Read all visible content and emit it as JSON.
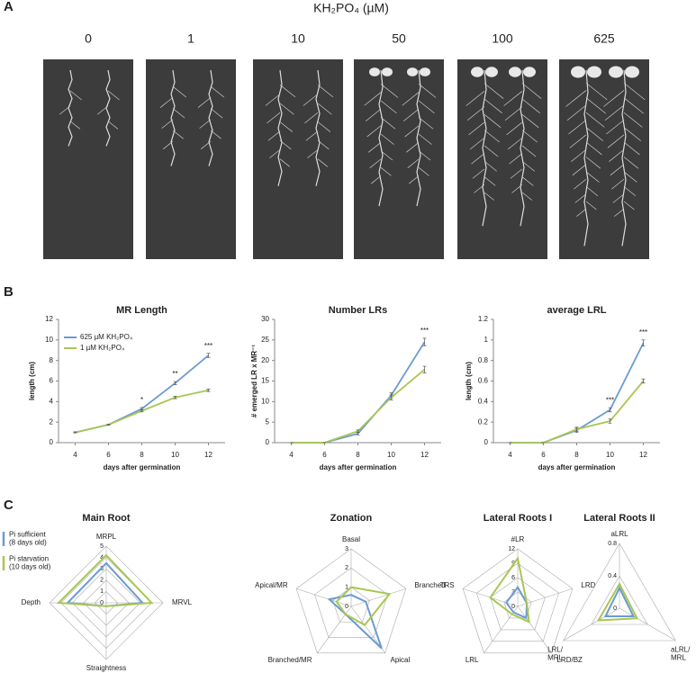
{
  "panel_a": {
    "label": "A",
    "title": "KH₂PO₄ (µM)",
    "concentrations": [
      "0",
      "1",
      "10",
      "50",
      "100",
      "625"
    ]
  },
  "panel_b_label": "B",
  "panel_c_label": "C",
  "legend_c": [
    "Pi sufficient (8 days old)",
    "Pi starvation (10 days old)"
  ],
  "chart_data": [
    {
      "type": "line",
      "title": "MR Length",
      "x_label": "days after germination",
      "y_label": "length (cm)",
      "x": [
        4,
        6,
        8,
        10,
        12
      ],
      "xlim": [
        3,
        13
      ],
      "xticks": [
        4,
        6,
        8,
        10,
        12
      ],
      "ylim": [
        0,
        12
      ],
      "yticks": [
        0,
        2,
        4,
        6,
        8,
        10,
        12
      ],
      "series": [
        {
          "name": "625 µM KH₂PO₄",
          "color": "#6b9bd2",
          "values": [
            1.0,
            1.75,
            3.3,
            5.8,
            8.5
          ],
          "errors": [
            0.05,
            0.05,
            0.12,
            0.15,
            0.2
          ]
        },
        {
          "name": "1 µM KH₂PO₄",
          "color": "#a9c653",
          "values": [
            1.0,
            1.75,
            3.1,
            4.4,
            5.1
          ],
          "errors": [
            0.05,
            0.05,
            0.1,
            0.12,
            0.12
          ]
        }
      ],
      "annotations": [
        {
          "x": 8,
          "text": "*"
        },
        {
          "x": 10,
          "text": "**"
        },
        {
          "x": 12,
          "text": "***"
        }
      ]
    },
    {
      "type": "line",
      "title": "Number LRs",
      "x_label": "days after germination",
      "y_label": "# emerged LR x MR⁻¹",
      "x": [
        4,
        6,
        8,
        10,
        12
      ],
      "xlim": [
        3,
        13
      ],
      "xticks": [
        4,
        6,
        8,
        10,
        12
      ],
      "ylim": [
        0,
        30
      ],
      "yticks": [
        0,
        5,
        10,
        15,
        20,
        25,
        30
      ],
      "series": [
        {
          "color": "#6b9bd2",
          "values": [
            0,
            0,
            2.2,
            11.5,
            24.5
          ],
          "errors": [
            0,
            0,
            0.3,
            0.6,
            0.9
          ]
        },
        {
          "color": "#a9c653",
          "values": [
            0,
            0,
            2.8,
            11,
            17.8
          ],
          "errors": [
            0,
            0,
            0.3,
            0.6,
            0.8
          ]
        }
      ],
      "annotations": [
        {
          "x": 12,
          "text": "***"
        }
      ]
    },
    {
      "type": "line",
      "title": "average LRL",
      "x_label": "days after germination",
      "y_label": "length (cm)",
      "x": [
        4,
        6,
        8,
        10,
        12
      ],
      "xlim": [
        3,
        13
      ],
      "xticks": [
        4,
        6,
        8,
        10,
        12
      ],
      "ylim": [
        0,
        1.2
      ],
      "yticks": [
        0,
        0.2,
        0.4,
        0.6,
        0.8,
        1,
        1.2
      ],
      "series": [
        {
          "color": "#6b9bd2",
          "values": [
            0,
            0,
            0.12,
            0.32,
            0.97
          ],
          "errors": [
            0,
            0,
            0.02,
            0.02,
            0.03
          ]
        },
        {
          "color": "#a9c653",
          "values": [
            0,
            0,
            0.13,
            0.21,
            0.6
          ],
          "errors": [
            0,
            0,
            0.02,
            0.02,
            0.02
          ]
        }
      ],
      "annotations": [
        {
          "x": 10,
          "text": "***"
        },
        {
          "x": 12,
          "text": "***"
        }
      ]
    },
    {
      "type": "radar",
      "title": "Main Root",
      "axes": [
        "MRPL",
        "MRVL",
        "Straightness",
        "Depth"
      ],
      "rlim": [
        0,
        5
      ],
      "rticks": [
        0,
        1,
        2,
        3,
        4,
        5
      ],
      "series": [
        {
          "color": "#6b9bd2",
          "values": [
            3.5,
            3.2,
            0.3,
            3.4
          ]
        },
        {
          "color": "#a9c653",
          "values": [
            4.2,
            4.0,
            0.3,
            4.2
          ]
        }
      ]
    },
    {
      "type": "radar",
      "title": "Zonation",
      "axes": [
        "Basal",
        "Branched",
        "Apical",
        "Branched/MR",
        "Apical/MR"
      ],
      "rlim": [
        0,
        3
      ],
      "rticks": [
        0,
        1,
        2,
        3
      ],
      "series": [
        {
          "color": "#6b9bd2",
          "values": [
            0.6,
            0.8,
            2.7,
            0.5,
            1.2
          ]
        },
        {
          "color": "#a9c653",
          "values": [
            1.0,
            2.1,
            1.2,
            0.5,
            0.8
          ]
        }
      ]
    },
    {
      "type": "radar",
      "title": "Lateral Roots I",
      "axes": [
        "#LR",
        "LRD",
        "LRD/BZ",
        "LRL",
        "TRS"
      ],
      "rlim": [
        0,
        12
      ],
      "rticks": [
        0,
        3,
        6,
        9,
        12
      ],
      "series": [
        {
          "color": "#6b9bd2",
          "values": [
            4,
            2,
            3,
            1.5,
            2.5
          ]
        },
        {
          "color": "#a9c653",
          "values": [
            10,
            2,
            4,
            2,
            6
          ]
        }
      ]
    },
    {
      "type": "radar",
      "title": "Lateral Roots II",
      "axes": [
        "aLRL",
        "aLRL/MRL",
        "LRL/MRL"
      ],
      "rlim": [
        0,
        0.8
      ],
      "rticks": [
        0,
        0.4,
        0.8
      ],
      "series": [
        {
          "color": "#6b9bd2",
          "values": [
            0.25,
            0.2,
            0.2
          ]
        },
        {
          "color": "#a9c653",
          "values": [
            0.3,
            0.25,
            0.3
          ]
        }
      ]
    }
  ]
}
